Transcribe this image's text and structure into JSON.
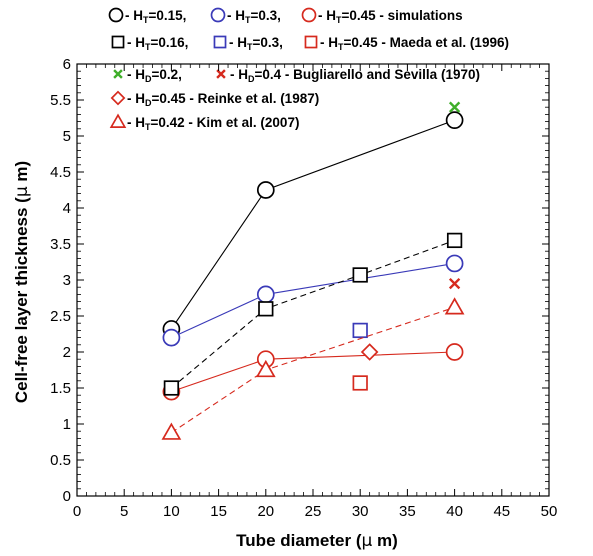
{
  "chart_data": {
    "type": "scatter",
    "xlabel": {
      "pre": "Tube diameter (",
      "mu": "µ",
      "post": " m)"
    },
    "ylabel": {
      "pre": "Cell-free layer thickness (",
      "mu": "µ",
      "post": " m)"
    },
    "xlim": [
      0,
      50
    ],
    "ylim": [
      0,
      6
    ],
    "xticks": [
      0,
      5,
      10,
      15,
      20,
      25,
      30,
      35,
      40,
      45,
      50
    ],
    "yticks": [
      0,
      0.5,
      1,
      1.5,
      2,
      2.5,
      3,
      3.5,
      4,
      4.5,
      5,
      5.5,
      6
    ],
    "xtick_labels": [
      "0",
      "5",
      "10",
      "15",
      "20",
      "25",
      "30",
      "35",
      "40",
      "45",
      "50"
    ],
    "ytick_labels": [
      "0",
      "0.5",
      "1",
      "1.5",
      "2",
      "2.5",
      "3",
      "3.5",
      "4",
      "4.5",
      "5",
      "5.5",
      "6"
    ],
    "grid": false,
    "legend_position": "top",
    "legend": [
      {
        "entries": [
          {
            "marker": "circle",
            "color": "#000000",
            "label": {
              "pre": " - H",
              "sub": "T",
              "post": "=0.15,"
            }
          },
          {
            "marker": "circle",
            "color": "#3a3ab8",
            "label": {
              "pre": " - H",
              "sub": "T",
              "post": "=0.3,"
            }
          },
          {
            "marker": "circle",
            "color": "#d62a1e",
            "label": {
              "pre": " - H",
              "sub": "T",
              "post": "=0.45 - simulations"
            }
          }
        ]
      },
      {
        "entries": [
          {
            "marker": "square",
            "color": "#000000",
            "label": {
              "pre": " - H",
              "sub": "T",
              "post": "=0.16,"
            }
          },
          {
            "marker": "square",
            "color": "#3a3ab8",
            "label": {
              "pre": " - H",
              "sub": "T",
              "post": "=0.3,"
            }
          },
          {
            "marker": "square",
            "color": "#d62a1e",
            "label": {
              "pre": " - H",
              "sub": "T",
              "post": "=0.45 - Maeda et al. (1996)"
            }
          }
        ]
      },
      {
        "entries": [
          {
            "marker": "x",
            "color": "#3fae2a",
            "label": {
              "pre": " - H",
              "sub": "D",
              "post": "=0.2,"
            }
          },
          {
            "marker": "x",
            "color": "#d62a1e",
            "label": {
              "pre": " - H",
              "sub": "D",
              "post": "=0.4 - Bugliarello and Sevilla (1970)"
            }
          }
        ]
      },
      {
        "entries": [
          {
            "marker": "diamond",
            "color": "#d62a1e",
            "label": {
              "pre": " - H",
              "sub": "D",
              "post": "=0.45 - Reinke et al. (1987)"
            }
          }
        ]
      },
      {
        "entries": [
          {
            "marker": "triangle",
            "color": "#d62a1e",
            "label": {
              "pre": " - H",
              "sub": "T",
              "post": "=0.42 - Kim et al. (2007)"
            }
          }
        ]
      }
    ],
    "series": [
      {
        "marker": "circle",
        "color": "#000000",
        "line": "solid",
        "line_color": "#000000",
        "x": [
          10,
          20,
          40
        ],
        "y": [
          2.32,
          4.25,
          5.22
        ]
      },
      {
        "marker": "circle",
        "color": "#3a3ab8",
        "line": "solid",
        "line_color": "#3a3ab8",
        "x": [
          10,
          20,
          40
        ],
        "y": [
          2.2,
          2.8,
          3.23
        ]
      },
      {
        "marker": "circle",
        "color": "#d62a1e",
        "line": "solid",
        "line_color": "#d62a1e",
        "x": [
          10,
          20,
          40
        ],
        "y": [
          1.45,
          1.9,
          2.0
        ]
      },
      {
        "marker": "square",
        "color": "#000000",
        "line": "dashed",
        "line_color": "#000000",
        "x": [
          10,
          20,
          30,
          40
        ],
        "y": [
          1.5,
          2.6,
          3.07,
          3.55
        ]
      },
      {
        "marker": "square",
        "color": "#3a3ab8",
        "line": "none",
        "x": [
          30
        ],
        "y": [
          2.3
        ]
      },
      {
        "marker": "square",
        "color": "#d62a1e",
        "line": "none",
        "x": [
          30
        ],
        "y": [
          1.57
        ]
      },
      {
        "marker": "x",
        "color": "#3fae2a",
        "line": "none",
        "x": [
          40
        ],
        "y": [
          5.4
        ]
      },
      {
        "marker": "x",
        "color": "#d62a1e",
        "line": "none",
        "x": [
          40
        ],
        "y": [
          2.95
        ]
      },
      {
        "marker": "diamond",
        "color": "#d62a1e",
        "line": "none",
        "x": [
          31
        ],
        "y": [
          2.0
        ]
      },
      {
        "marker": "triangle",
        "color": "#d62a1e",
        "line": "dashed",
        "line_color": "#d62a1e",
        "x": [
          10,
          20,
          40
        ],
        "y": [
          0.88,
          1.75,
          2.62
        ]
      }
    ]
  }
}
